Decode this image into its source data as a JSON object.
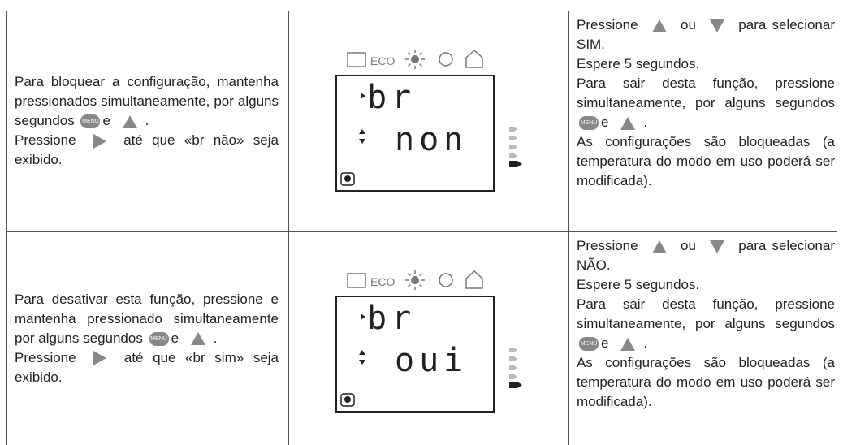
{
  "icons": {
    "menu": "MENU"
  },
  "rows": [
    {
      "instructions": [
        [
          "Para bloquear a configuração, mantenha pressionados simulta­neamente, por alguns segundos ",
          "e ",
          "."
        ],
        [
          "Pressione ",
          " até que «br não» seja exibido."
        ]
      ],
      "display": {
        "eco": "ECO",
        "line1": "br",
        "line2": "non"
      },
      "steps": [
        [
          "Pressione ",
          " ou ",
          " para selecionar SIM."
        ],
        [
          "Espere 5 segundos."
        ],
        [
          "Para sair desta função, pressione simultaneamente, por alguns segundos ",
          "e ",
          "."
        ],
        [
          "As configurações são bloqueadas (a temperatura do modo em uso poderá ser modificada)."
        ]
      ]
    },
    {
      "instructions": [
        [
          "Para desativar esta função, pres­sione e mantenha pressionado simultaneamente por alguns se­gundos ",
          "e ",
          "."
        ],
        [
          "Pressione ",
          " até que «br sim» seja exibido."
        ]
      ],
      "display": {
        "eco": "ECO",
        "line1": "br",
        "line2": "oui"
      },
      "steps": [
        [
          "Pressione ",
          " ou ",
          " para selecionar NÃO."
        ],
        [
          "Espere 5 segundos."
        ],
        [
          "Para sair desta função, pressione simultaneamente, por alguns segundos ",
          "e ",
          "."
        ],
        [
          "As configurações são bloqueadas (a temperatura do modo em uso poderá ser modificada)."
        ]
      ]
    }
  ]
}
